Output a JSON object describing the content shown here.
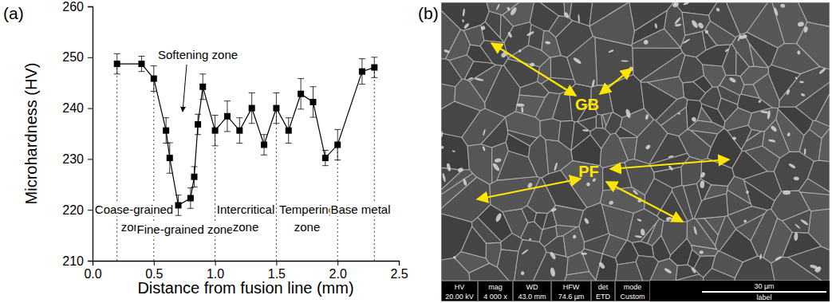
{
  "chart_data": {
    "type": "line",
    "panel_label": "(a)",
    "x_title": "Distance from fusion line (mm)",
    "y_title": "Microhardness (HV)",
    "x": [
      0.2,
      0.4,
      0.5,
      0.6,
      0.63,
      0.7,
      0.8,
      0.83,
      0.86,
      0.9,
      1.0,
      1.1,
      1.2,
      1.3,
      1.4,
      1.5,
      1.6,
      1.7,
      1.8,
      1.9,
      2.0,
      2.2,
      2.3
    ],
    "series": [
      {
        "values": [
          248.7,
          248.7,
          245.8,
          235.6,
          230.2,
          220.9,
          222.3,
          226.5,
          236.8,
          244.2,
          235.6,
          238.4,
          235.6,
          240.0,
          232.8,
          240.0,
          235.6,
          242.8,
          241.2,
          230.2,
          232.8,
          247.2,
          248.0
        ],
        "errors": [
          2.0,
          1.5,
          2.5,
          2.5,
          3.0,
          2.0,
          2.0,
          2.0,
          2.0,
          2.5,
          3.0,
          3.0,
          2.5,
          3.0,
          2.0,
          3.0,
          2.5,
          3.0,
          3.0,
          1.5,
          3.0,
          2.5,
          2.0
        ],
        "color": "#000000",
        "marker": "square",
        "line_style": "solid"
      }
    ],
    "xlim": [
      0,
      2.5
    ],
    "xticks": [
      {
        "value": 0,
        "label": "0.0"
      },
      0.5,
      {
        "value": 1,
        "label": "1.0"
      },
      1.5,
      {
        "value": 2,
        "label": "2.0"
      },
      2.5
    ],
    "ylim": [
      210,
      260
    ],
    "yticks": [
      210,
      220,
      230,
      240,
      250,
      260
    ],
    "grid": false,
    "zone_lines": [
      0.2,
      0.5,
      1.0,
      1.5,
      2.0,
      2.3
    ],
    "zone_labels": [
      [
        "Coase-grained",
        "zone"
      ],
      [
        "Fine-grained zone"
      ],
      [
        "Intercritical",
        "zone"
      ],
      [
        "Tempering",
        "zone"
      ],
      [
        "Base metal"
      ]
    ],
    "annotations": [
      "Softening zone"
    ]
  },
  "micrograph": {
    "panel_label": "(b)",
    "labels": [
      "GB",
      "PF"
    ],
    "info_bar": [
      {
        "name": "HV",
        "value": "20.00 kV"
      },
      {
        "name": "mag",
        "value": "4 000 x"
      },
      {
        "name": "WD",
        "value": "43.0 mm"
      },
      {
        "name": "HFW",
        "value": "74.6 µm"
      },
      {
        "name": "det",
        "value": "ETD"
      },
      {
        "name": "mode",
        "value": "Custom"
      }
    ],
    "scale_bar": "30 µm",
    "scale_label": "label"
  }
}
